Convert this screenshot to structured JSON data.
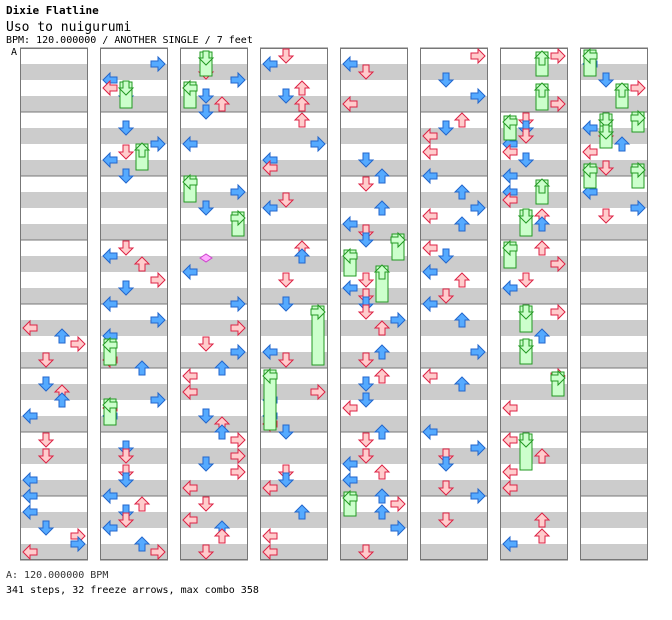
{
  "header": {
    "artist": "Dixie Flatline",
    "title": "Uso to nuigurumi",
    "info": "BPM: 120.000000 / ANOTHER SINGLE / 7 feet",
    "marker": "A"
  },
  "footer": {
    "bpm": "A: 120.000000 BPM",
    "stats": "341 steps, 32 freeze arrows, max combo 358"
  },
  "colors": {
    "stripe": "#cccccc",
    "border": "#777777",
    "arrow_red_fill": "#ffcccc",
    "arrow_red_stroke": "#dd2244",
    "arrow_blue_fill": "#55aaff",
    "arrow_blue_stroke": "#2266cc",
    "freeze_fill": "#ccffcc",
    "freeze_stroke": "#229922",
    "shock_fill": "#ffaaff"
  },
  "chart": {
    "columns": 8,
    "measures_per_column": 8,
    "lanes": [
      "left",
      "down",
      "up",
      "right"
    ]
  }
}
